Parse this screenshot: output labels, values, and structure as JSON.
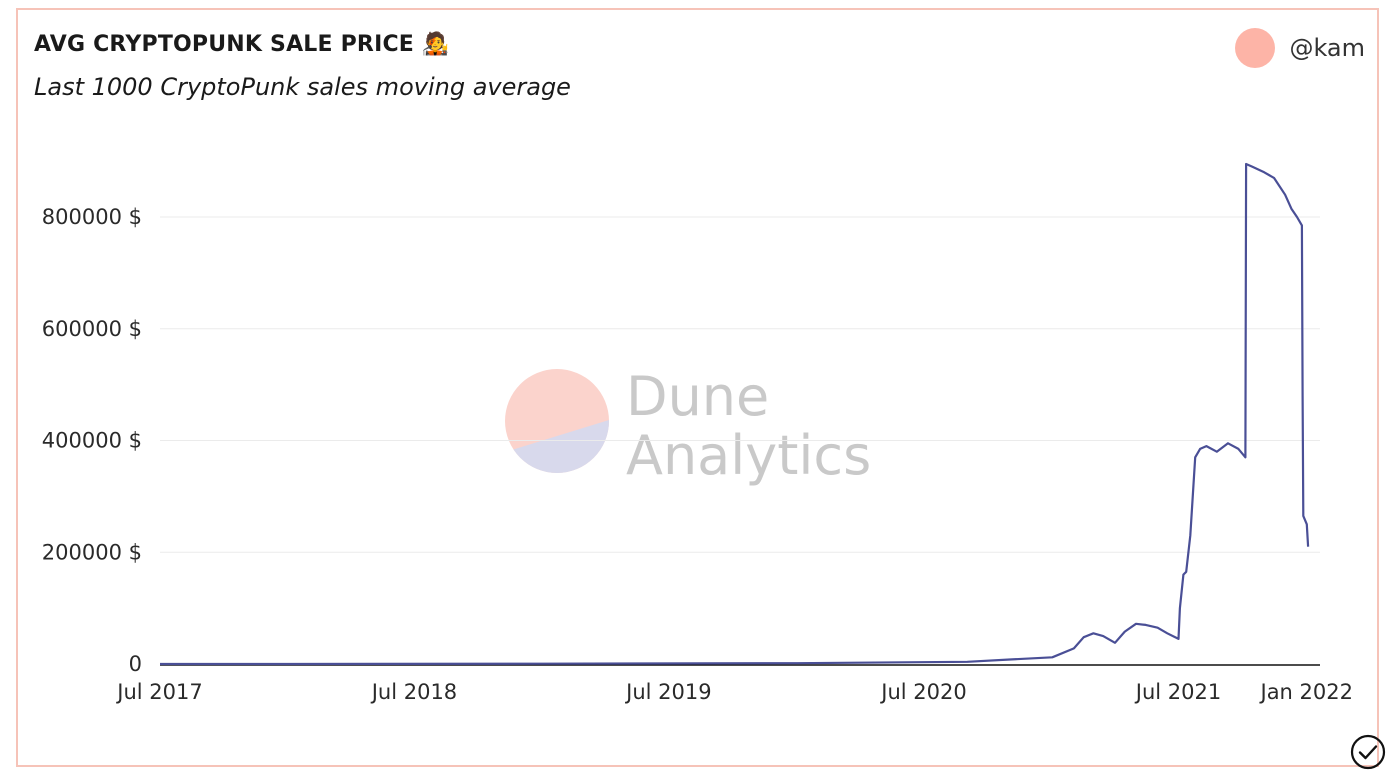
{
  "header": {
    "title": "AVG CRYPTOPUNK SALE PRICE",
    "title_emoji": "🧑‍🎤",
    "subtitle": "Last 1000 CryptoPunk sales moving average",
    "username": "@kam",
    "avatar_color": "#fdb4a7"
  },
  "watermark": {
    "line1": "Dune",
    "line2": "Analytics"
  },
  "colors": {
    "line": "#4a4f96",
    "grid": "#ebebeb",
    "axis": "#111111",
    "border": "#f6c3b8"
  },
  "status_icon": "check-circle-icon",
  "chart_data": {
    "type": "line",
    "title": "AVG CRYPTOPUNK SALE PRICE",
    "subtitle": "Last 1000 CryptoPunk sales moving average",
    "xlabel": "",
    "ylabel": "",
    "x_ticks": [
      "Jul 2017",
      "Jul 2018",
      "Jul 2019",
      "Jul 2020",
      "Jul 2021",
      "Jan 2022"
    ],
    "x_tick_dates": [
      "2017-07-01",
      "2018-07-01",
      "2019-07-01",
      "2020-07-01",
      "2021-07-01",
      "2022-01-01"
    ],
    "y_ticks": [
      "0",
      "200000 $",
      "400000 $",
      "600000 $",
      "800000 $"
    ],
    "y_tick_values": [
      0,
      200000,
      400000,
      600000,
      800000
    ],
    "xlim": [
      "2017-07-01",
      "2022-01-20"
    ],
    "ylim": [
      0,
      920000
    ],
    "grid": true,
    "series": [
      {
        "x": [
          "2017-07-01",
          "2018-01-01",
          "2019-01-01",
          "2020-01-01",
          "2020-09-01",
          "2020-11-01",
          "2021-01-01",
          "2021-02-01",
          "2021-02-15",
          "2021-03-01",
          "2021-03-15",
          "2021-04-01",
          "2021-04-15",
          "2021-05-01",
          "2021-05-15",
          "2021-06-01",
          "2021-06-15",
          "2021-07-01",
          "2021-07-03",
          "2021-07-08",
          "2021-07-12",
          "2021-07-18",
          "2021-07-25",
          "2021-08-01",
          "2021-08-10",
          "2021-08-25",
          "2021-09-10",
          "2021-09-25",
          "2021-10-05",
          "2021-10-06",
          "2021-10-15",
          "2021-11-01",
          "2021-11-15",
          "2021-12-01",
          "2021-12-10",
          "2021-12-18",
          "2021-12-25",
          "2021-12-26",
          "2021-12-27",
          "2022-01-01",
          "2022-01-03"
        ],
        "values": [
          0,
          0,
          500,
          1500,
          4000,
          8000,
          12000,
          28000,
          48000,
          55000,
          50000,
          38000,
          58000,
          72000,
          70000,
          65000,
          55000,
          45000,
          100000,
          160000,
          165000,
          230000,
          370000,
          385000,
          390000,
          380000,
          395000,
          385000,
          370000,
          895000,
          890000,
          880000,
          870000,
          840000,
          815000,
          800000,
          785000,
          480000,
          265000,
          250000,
          210000
        ]
      }
    ]
  }
}
